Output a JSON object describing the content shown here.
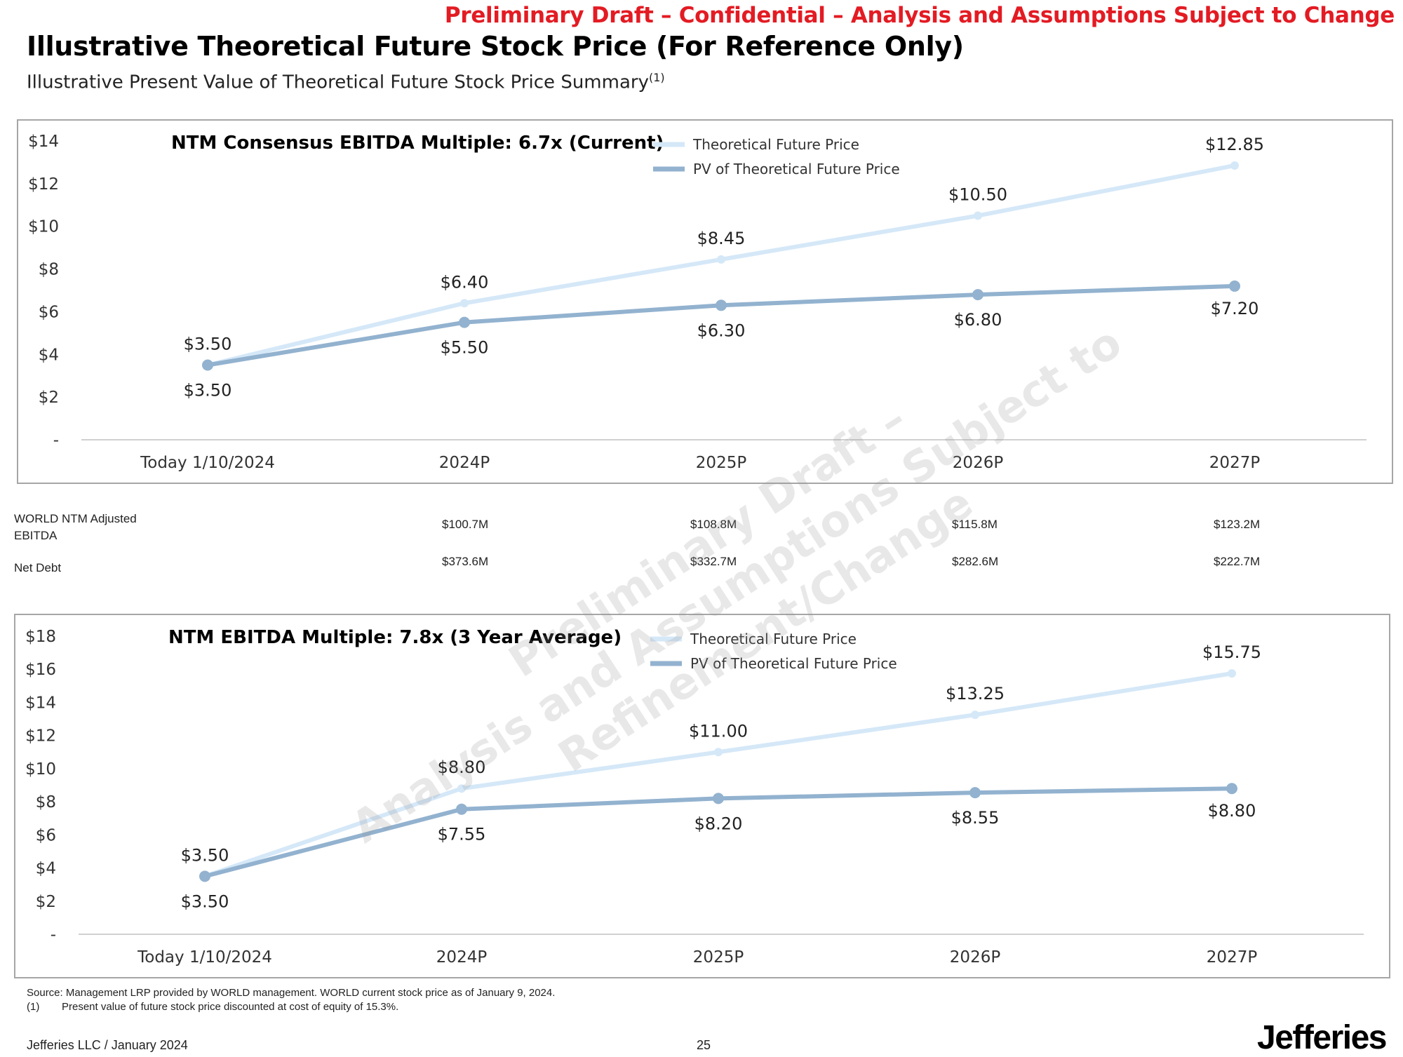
{
  "header": {
    "banner": "Preliminary Draft – Confidential – Analysis and Assumptions Subject to Change",
    "title": "Illustrative Theoretical Future Stock Price (For Reference Only)",
    "subtitle": "Illustrative Present Value of Theoretical Future Stock Price Summary",
    "subtitle_note": "(1)"
  },
  "watermark": {
    "line1": "Preliminary Draft –",
    "line2": "Analysis and Assumptions Subject to Refinement/Change"
  },
  "colors": {
    "future": "#d5e8f8",
    "pv": "#92b2cf",
    "axis": "#d0d0d0"
  },
  "chart_data": [
    {
      "type": "line",
      "title": "NTM Consensus EBITDA Multiple: 6.7x (Current)",
      "categories": [
        "Today 1/10/2024",
        "2024P",
        "2025P",
        "2026P",
        "2027P"
      ],
      "series": [
        {
          "name": "Theoretical Future Price",
          "values": [
            3.5,
            6.4,
            8.45,
            10.5,
            12.85
          ],
          "labels": [
            "$3.50",
            "$6.40",
            "$8.45",
            "$10.50",
            "$12.85"
          ]
        },
        {
          "name": "PV of Theoretical Future Price",
          "values": [
            3.5,
            5.5,
            6.3,
            6.8,
            7.2
          ],
          "labels": [
            "$3.50",
            "$5.50",
            "$6.30",
            "$6.80",
            "$7.20"
          ]
        }
      ],
      "yticks": [
        "-",
        "$2",
        "$4",
        "$6",
        "$8",
        "$10",
        "$12",
        "$14"
      ],
      "ylim": [
        0,
        14
      ],
      "legend": "top-center"
    },
    {
      "type": "line",
      "title": "NTM EBITDA Multiple: 7.8x (3 Year Average)",
      "categories": [
        "Today 1/10/2024",
        "2024P",
        "2025P",
        "2026P",
        "2027P"
      ],
      "series": [
        {
          "name": "Theoretical Future Price",
          "values": [
            3.5,
            8.8,
            11.0,
            13.25,
            15.75
          ],
          "labels": [
            "$3.50",
            "$8.80",
            "$11.00",
            "$13.25",
            "$15.75"
          ]
        },
        {
          "name": "PV of Theoretical Future Price",
          "values": [
            3.5,
            7.55,
            8.2,
            8.55,
            8.8
          ],
          "labels": [
            "$3.50",
            "$7.55",
            "$8.20",
            "$8.55",
            "$8.80"
          ]
        }
      ],
      "yticks": [
        "-",
        "$2",
        "$4",
        "$6",
        "$8",
        "$10",
        "$12",
        "$14",
        "$16",
        "$18"
      ],
      "ylim": [
        0,
        18
      ],
      "legend": "top-center"
    }
  ],
  "metrics": {
    "rows": [
      {
        "label": "WORLD NTM Adjusted EBITDA",
        "values": [
          "$100.7M",
          "$108.8M",
          "$115.8M",
          "$123.2M"
        ]
      },
      {
        "label": "Net Debt",
        "values": [
          "$373.6M",
          "$332.7M",
          "$282.6M",
          "$222.7M"
        ]
      }
    ]
  },
  "footnotes": {
    "source": "Source: Management LRP provided by WORLD management. WORLD current stock price as of January 9, 2024.",
    "note_marker": "(1)",
    "note_text": "Present value of future stock price discounted at cost of equity of 15.3%."
  },
  "footer": {
    "left": "Jefferies LLC / January 2024",
    "page": "25",
    "logo": "Jefferies"
  }
}
